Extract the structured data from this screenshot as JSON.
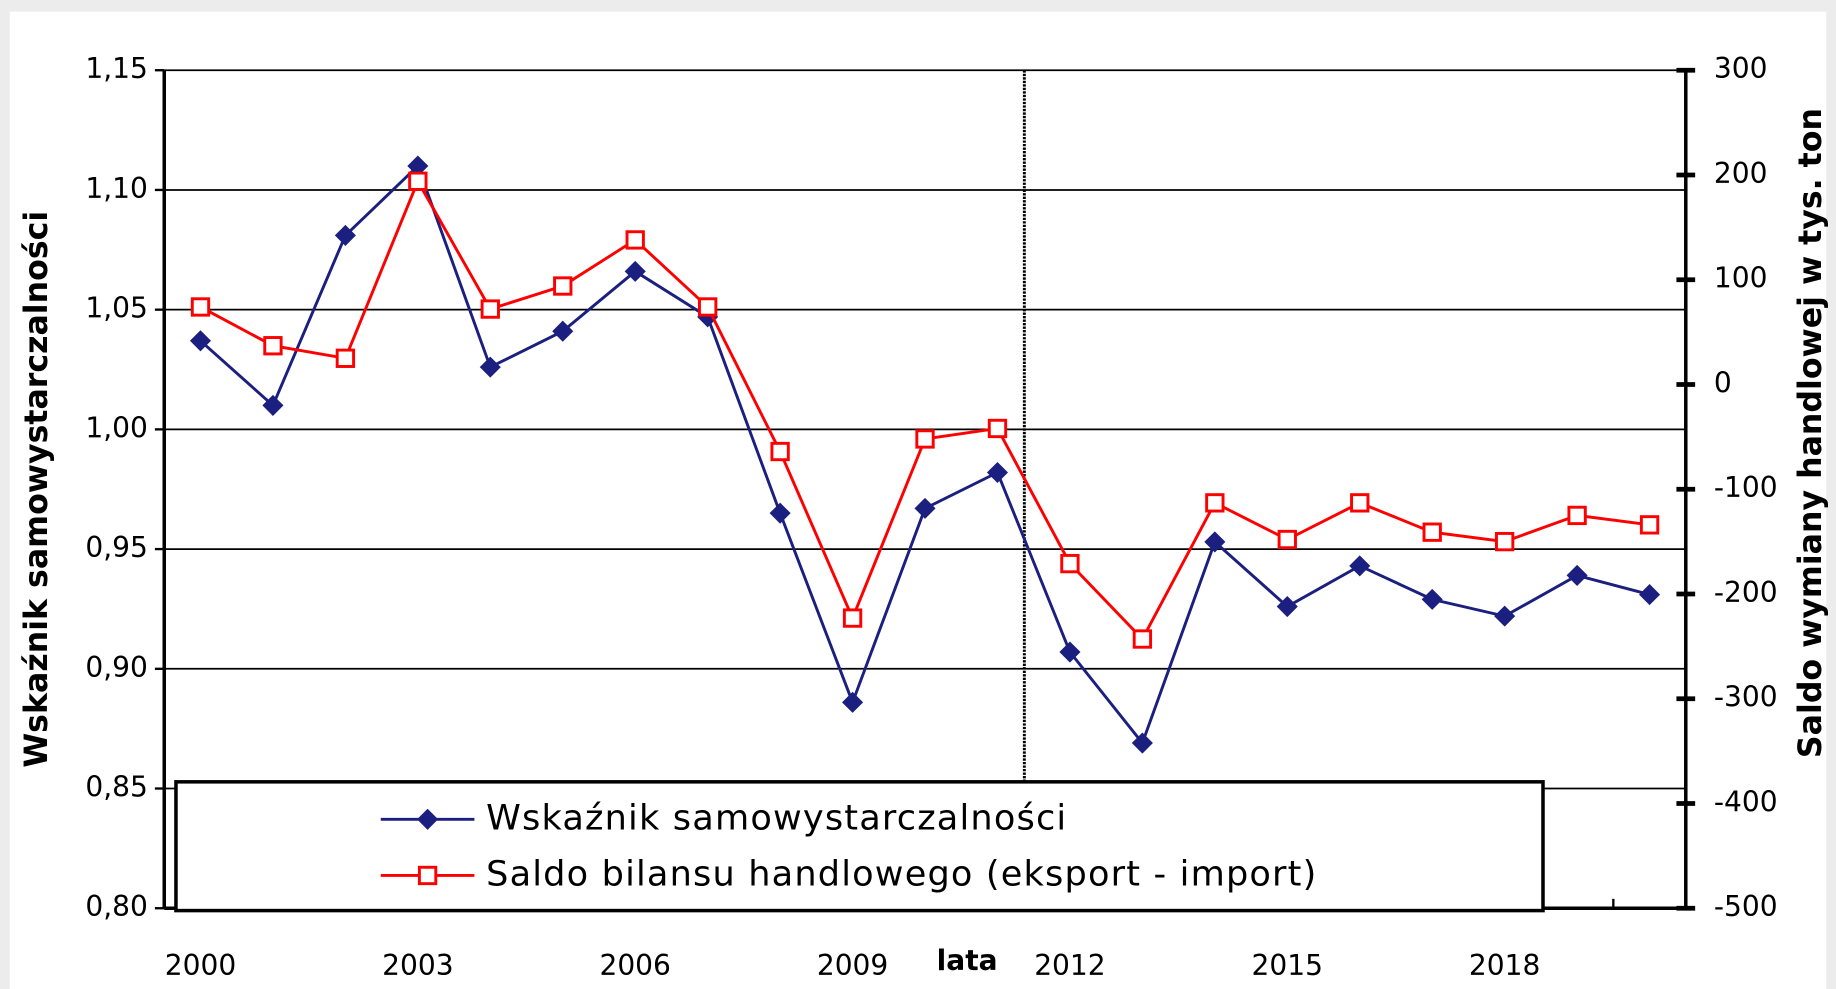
{
  "chart_data": {
    "type": "line",
    "categories": [
      "2000",
      null,
      null,
      "2003",
      null,
      null,
      "2006",
      null,
      null,
      "2009",
      null,
      null,
      "2012",
      null,
      null,
      "2015",
      null,
      null,
      "2018",
      null,
      null
    ],
    "x_label": "lata",
    "y_label": "Wskaźnik samowystarczalności",
    "y2_label": "Saldo wymiany handlowej w tys. ton",
    "ylim": [
      0.8,
      1.15
    ],
    "yticks": [
      {
        "value": 0.8,
        "label": "0,80"
      },
      {
        "value": 0.85,
        "label": "0,85"
      },
      {
        "value": 0.9,
        "label": "0,90"
      },
      {
        "value": 0.95,
        "label": "0,95"
      },
      {
        "value": 1.0,
        "label": "1,00"
      },
      {
        "value": 1.05,
        "label": "1,05"
      },
      {
        "value": 1.1,
        "label": "1,10"
      },
      {
        "value": 1.15,
        "label": "1,15"
      }
    ],
    "y2lim": [
      -500,
      300
    ],
    "y2ticks": [
      -500,
      -400,
      -300,
      -200,
      -100,
      0,
      100,
      200,
      300
    ],
    "grid": true,
    "series": [
      {
        "name": "Wskaźnik samowystarczalności",
        "color": "#1a1f80",
        "marker": "diamond",
        "axis": "y",
        "values": [
          1.037,
          1.01,
          1.081,
          1.11,
          1.026,
          1.041,
          1.066,
          1.047,
          0.965,
          0.886,
          0.967,
          0.982,
          0.907,
          0.869,
          0.953,
          0.926,
          0.943,
          0.929,
          0.922,
          0.939,
          0.931
        ]
      },
      {
        "name": "Saldo bilansu handlowego (eksport - import)",
        "color": "#ff0000",
        "marker": "square",
        "axis": "y2",
        "values": [
          74,
          37,
          25,
          194,
          72,
          94,
          138,
          74,
          -64,
          -223,
          -52,
          -42,
          -171,
          -243,
          -113,
          -148,
          -113,
          -141,
          -150,
          -125,
          -134
        ]
      }
    ]
  }
}
